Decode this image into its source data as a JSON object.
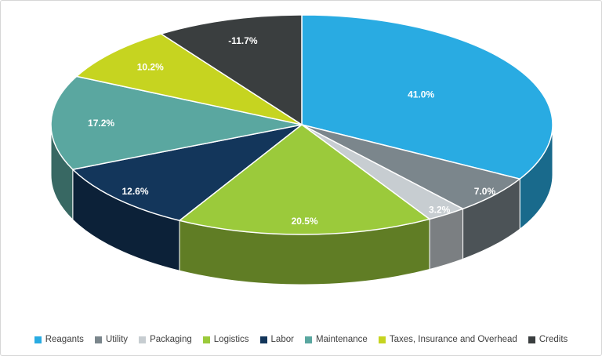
{
  "chart_data": {
    "type": "pie",
    "effect": "3d",
    "title": "",
    "legend_position": "bottom",
    "background_color": "#FFFFFF",
    "frame_border_color": "#D6D6D6",
    "label_text_color": "#FFFFFF",
    "legend_text_color": "#3F3F3F",
    "slices": [
      {
        "label": "Reagants",
        "value": 41.0,
        "display": "41.0%",
        "color": "#29ABE2",
        "label_radius": 0.55
      },
      {
        "label": "Utility",
        "value": 7.0,
        "display": "7.0%",
        "color": "#7B868C",
        "label_radius": 0.95
      },
      {
        "label": "Packaging",
        "value": 3.2,
        "display": "3.2%",
        "color": "#C7CDD1",
        "label_radius": 0.95
      },
      {
        "label": "Logistics",
        "value": 20.5,
        "display": "20.5%",
        "color": "#9BCA3B",
        "label_radius": 0.88
      },
      {
        "label": "Labor",
        "value": 12.6,
        "display": "12.6%",
        "color": "#13365B",
        "label_radius": 0.9
      },
      {
        "label": "Maintenance",
        "value": 17.2,
        "display": "17.2%",
        "color": "#5AA7A0",
        "label_radius": 0.8
      },
      {
        "label": "Taxes, Insurance and Overhead",
        "value": 10.2,
        "display": "10.2%",
        "color": "#C6D420",
        "label_radius": 0.8
      },
      {
        "label": "Credits",
        "value": -11.7,
        "display": "-11.7%",
        "color": "#3A3E3F",
        "label_radius": 0.8
      }
    ]
  }
}
